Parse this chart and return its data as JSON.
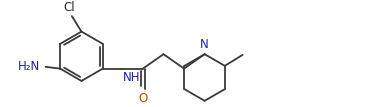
{
  "background": "#ffffff",
  "bond_color": "#3a3a3a",
  "atom_color_N": "#2020aa",
  "atom_color_O": "#b05000",
  "atom_color_Cl": "#2a2a2a",
  "figsize": [
    3.72,
    1.07
  ],
  "dpi": 100,
  "bond_lw": 1.3,
  "font_size": 8.5,
  "xlim": [
    0,
    10.5
  ],
  "ylim": [
    0,
    2.9
  ]
}
